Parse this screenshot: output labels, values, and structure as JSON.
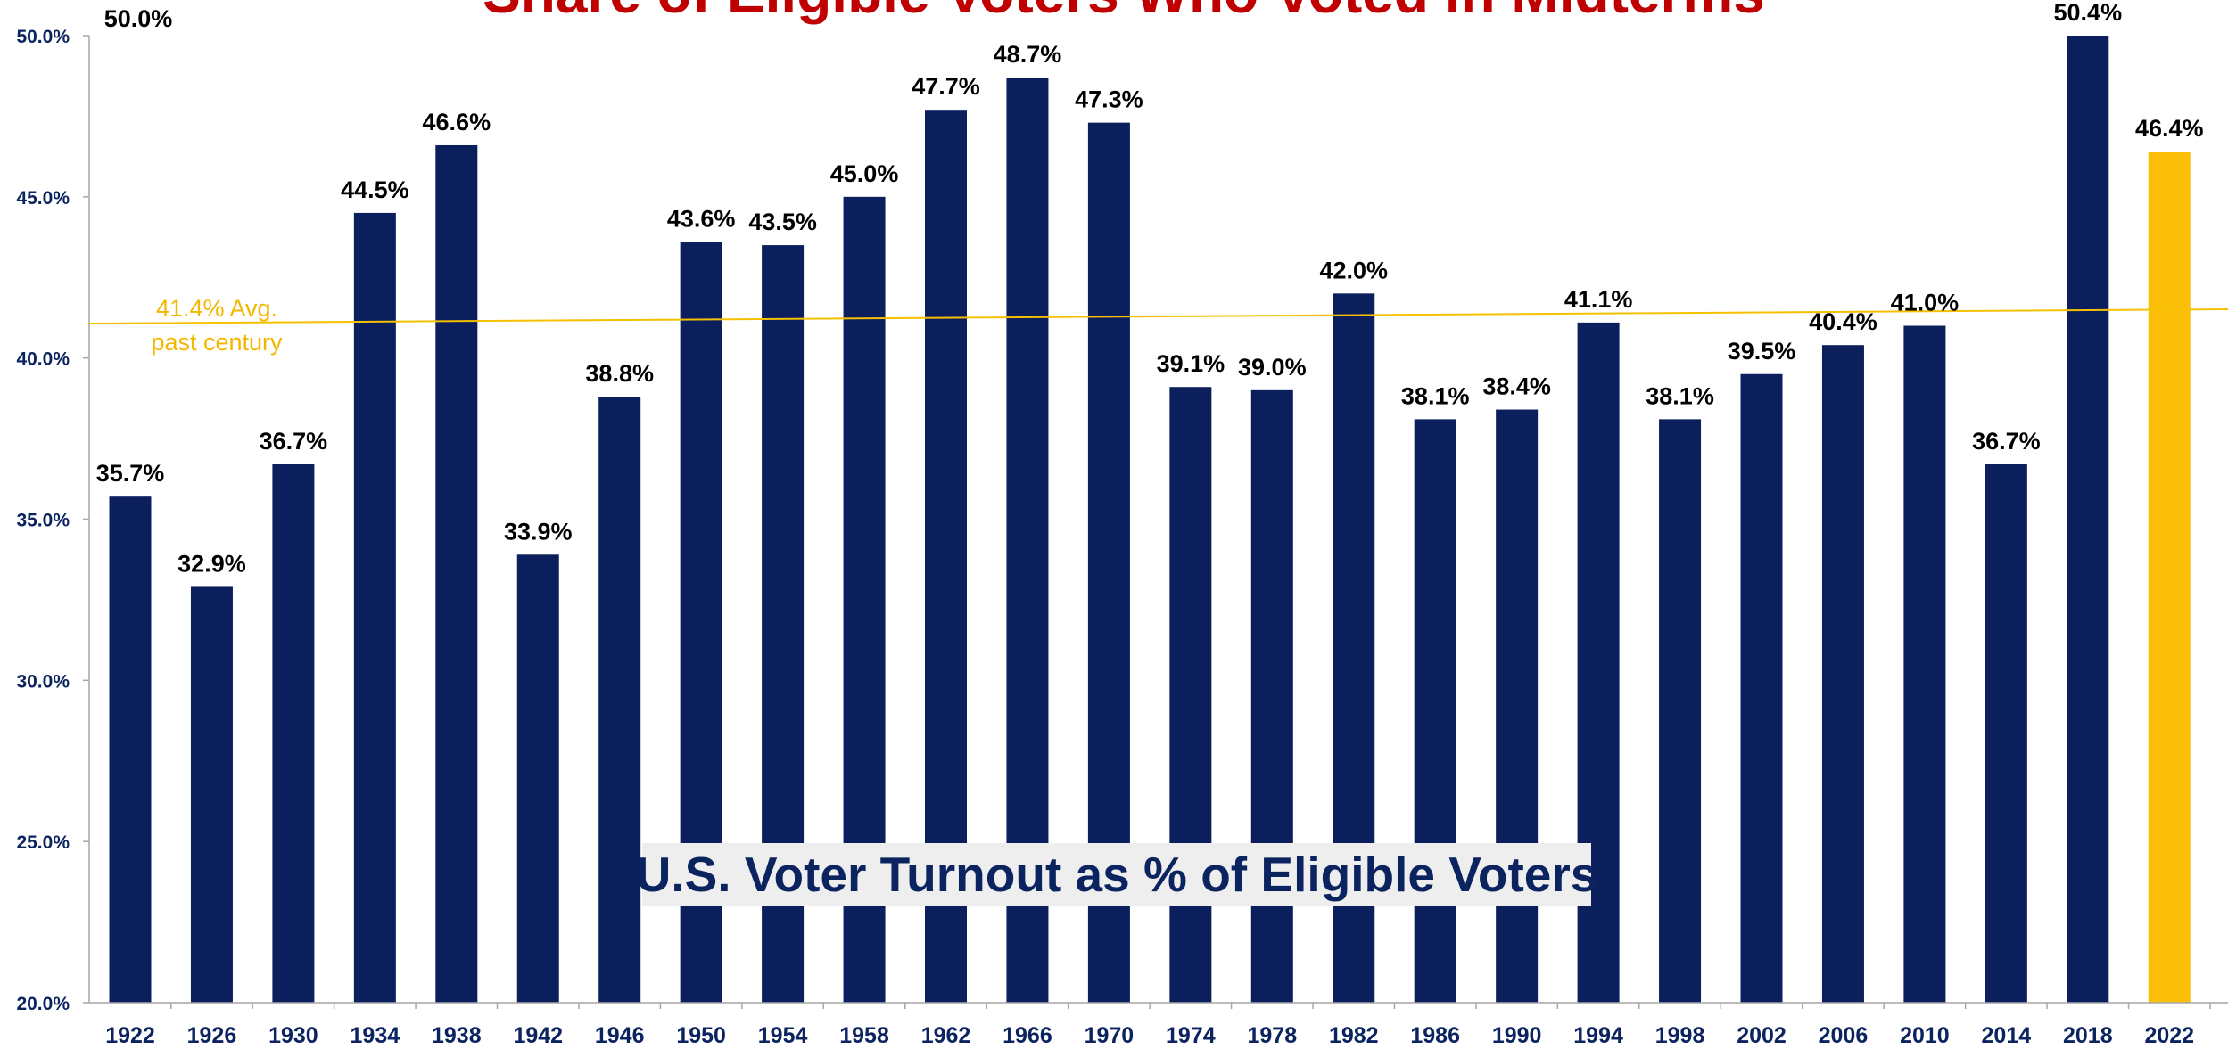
{
  "chart_data": {
    "type": "bar",
    "title": "Share of Eligible Voters Who Voted in Midterms",
    "subtitle": "U.S. Voter Turnout as % of Eligible Voters",
    "categories": [
      "1922",
      "1926",
      "1930",
      "1934",
      "1938",
      "1942",
      "1946",
      "1950",
      "1954",
      "1958",
      "1962",
      "1966",
      "1970",
      "1974",
      "1978",
      "1982",
      "1986",
      "1990",
      "1994",
      "1998",
      "2002",
      "2006",
      "2010",
      "2014",
      "2018",
      "2022"
    ],
    "values": [
      35.7,
      32.9,
      36.7,
      44.5,
      46.6,
      33.9,
      38.8,
      43.6,
      43.5,
      45.0,
      47.7,
      48.7,
      47.3,
      39.1,
      39.0,
      42.0,
      38.1,
      38.4,
      41.1,
      38.1,
      39.5,
      40.4,
      41.0,
      36.7,
      50.4,
      46.4
    ],
    "data_labels": [
      "35.7%",
      "32.9%",
      "36.7%",
      "44.5%",
      "46.6%",
      "33.9%",
      "38.8%",
      "43.6%",
      "43.5%",
      "45.0%",
      "47.7%",
      "48.7%",
      "47.3%",
      "39.1%",
      "39.0%",
      "42.0%",
      "38.1%",
      "38.4%",
      "41.1%",
      "38.1%",
      "39.5%",
      "40.4%",
      "41.0%",
      "36.7%",
      "50.4%",
      "46.4%"
    ],
    "highlight_index": 25,
    "ylim": [
      20,
      50
    ],
    "yticks": [
      20,
      25,
      30,
      35,
      40,
      45,
      50
    ],
    "ytick_labels": [
      "20.0%",
      "25.0%",
      "30.0%",
      "35.0%",
      "40.0%",
      "45.0%",
      "50.0%"
    ],
    "overflow_label": "50.0%",
    "average_value": 41.4,
    "average_label_lines": [
      "41.4% Avg.",
      "past century"
    ],
    "grid": false,
    "legend": "none",
    "xlabel": "",
    "ylabel": ""
  },
  "colors": {
    "bar": "#0b1f5c",
    "highlight_bar": "#fbbf0a",
    "average_line": "#f5c000",
    "average_text": "#f2b800",
    "axis": "#a6a6a6",
    "title": "#c00000",
    "subtitle": "#0b2460",
    "subtitle_bg": "#eeeeee",
    "tick_text": "#0b2460"
  }
}
